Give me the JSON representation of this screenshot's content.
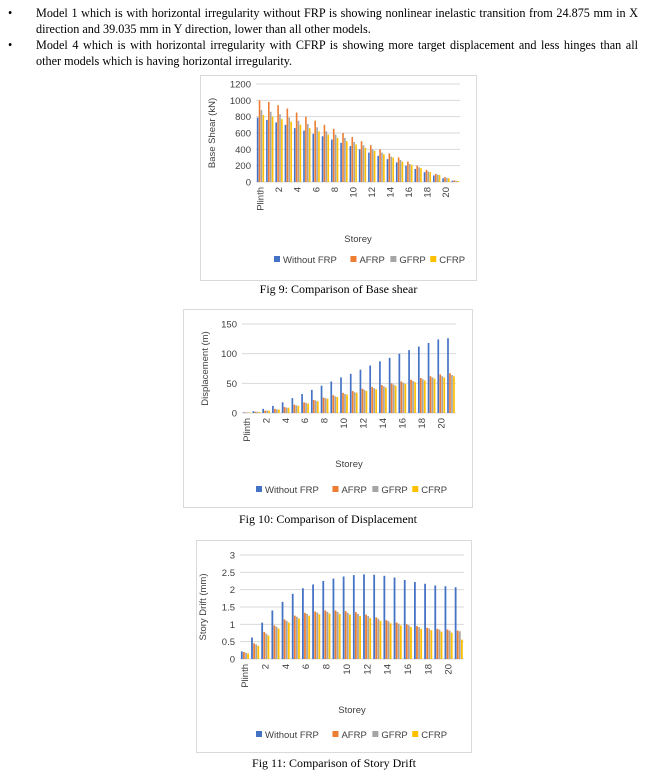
{
  "bullets": [
    "Model 1 which is with horizontal irregularity without FRP is showing nonlinear inelastic transition from 24.875 mm in X direction and 39.035 mm in Y direction, lower than all other models.",
    "Model 4 which is with horizontal irregularity with CFRP is showing more target displacement and less hinges than all other models which is having horizontal irregularity."
  ],
  "captions": {
    "fig9": "Fig 9: Comparison of Base shear",
    "fig10": "Fig 10: Comparison of Displacement",
    "fig11": "Fig 11: Comparison of Story Drift"
  },
  "chart_data": [
    {
      "type": "bar",
      "xlabel": "Storey",
      "ylabel": "Base Shear (kN)",
      "ylim": [
        0,
        1200
      ],
      "yticks": [
        0,
        200,
        400,
        600,
        800,
        1000,
        1200
      ],
      "grid": true,
      "legend": "bottom",
      "categories": [
        "Plinth",
        "1",
        "2",
        "3",
        "4",
        "5",
        "6",
        "7",
        "8",
        "9",
        "10",
        "11",
        "12",
        "13",
        "14",
        "15",
        "16",
        "17",
        "18",
        "19",
        "20",
        "21"
      ],
      "tick_labels": [
        "Plinth",
        "2",
        "4",
        "6",
        "8",
        "10",
        "12",
        "14",
        "16",
        "18",
        "20"
      ],
      "series": [
        {
          "name": "Without FRP",
          "color": "#4472c4",
          "values": [
            790,
            760,
            730,
            700,
            660,
            630,
            590,
            560,
            520,
            480,
            440,
            400,
            360,
            320,
            280,
            240,
            200,
            160,
            120,
            80,
            45,
            15
          ]
        },
        {
          "name": "AFRP",
          "color": "#ed7d31",
          "values": [
            1000,
            980,
            940,
            900,
            850,
            800,
            750,
            700,
            650,
            600,
            550,
            500,
            450,
            400,
            350,
            300,
            250,
            200,
            150,
            100,
            60,
            20
          ]
        },
        {
          "name": "GFRP",
          "color": "#a5a5a5",
          "values": [
            880,
            860,
            830,
            790,
            750,
            710,
            670,
            620,
            580,
            540,
            490,
            450,
            400,
            360,
            310,
            270,
            220,
            180,
            130,
            90,
            50,
            15
          ]
        },
        {
          "name": "CFRP",
          "color": "#ffc000",
          "values": [
            820,
            800,
            770,
            740,
            700,
            660,
            620,
            580,
            540,
            500,
            460,
            420,
            380,
            340,
            300,
            250,
            210,
            170,
            120,
            85,
            45,
            12
          ]
        }
      ]
    },
    {
      "type": "bar",
      "xlabel": "Storey",
      "ylabel": "Displacement (m)",
      "ylim": [
        0,
        150
      ],
      "yticks": [
        0,
        50,
        100,
        150
      ],
      "grid": true,
      "legend": "bottom",
      "categories": [
        "Plinth",
        "1",
        "2",
        "3",
        "4",
        "5",
        "6",
        "7",
        "8",
        "9",
        "10",
        "11",
        "12",
        "13",
        "14",
        "15",
        "16",
        "17",
        "18",
        "19",
        "20",
        "21"
      ],
      "tick_labels": [
        "Plinth",
        "2",
        "4",
        "6",
        "8",
        "10",
        "12",
        "14",
        "16",
        "18",
        "20"
      ],
      "series": [
        {
          "name": "Without FRP",
          "color": "#4472c4",
          "values": [
            1,
            3,
            7,
            12,
            18,
            25,
            32,
            39,
            46,
            53,
            60,
            66,
            73,
            80,
            87,
            93,
            100,
            106,
            112,
            118,
            124,
            126
          ]
        },
        {
          "name": "AFRP",
          "color": "#ed7d31",
          "values": [
            1,
            2,
            4,
            7,
            10,
            14,
            18,
            22,
            26,
            30,
            34,
            37,
            41,
            44,
            47,
            50,
            53,
            56,
            59,
            62,
            65,
            67
          ]
        },
        {
          "name": "GFRP",
          "color": "#a5a5a5",
          "values": [
            1,
            2,
            4,
            6,
            9,
            13,
            17,
            21,
            25,
            28,
            32,
            35,
            39,
            42,
            45,
            48,
            51,
            54,
            57,
            60,
            62,
            64
          ]
        },
        {
          "name": "CFRP",
          "color": "#ffc000",
          "values": [
            1,
            2,
            4,
            6,
            9,
            12,
            16,
            20,
            24,
            27,
            31,
            34,
            37,
            40,
            43,
            46,
            49,
            52,
            55,
            58,
            60,
            62
          ]
        }
      ]
    },
    {
      "type": "bar",
      "xlabel": "Storey",
      "ylabel": "Story Drift (mm)",
      "ylim": [
        0,
        3
      ],
      "yticks": [
        0,
        0.5,
        1,
        1.5,
        2,
        2.5,
        3
      ],
      "grid": true,
      "legend": "bottom",
      "categories": [
        "Plinth",
        "1",
        "2",
        "3",
        "4",
        "5",
        "6",
        "7",
        "8",
        "9",
        "10",
        "11",
        "12",
        "13",
        "14",
        "15",
        "16",
        "17",
        "18",
        "19",
        "20",
        "21"
      ],
      "tick_labels": [
        "Plinth",
        "2",
        "4",
        "6",
        "8",
        "10",
        "12",
        "14",
        "16",
        "18",
        "20"
      ],
      "series": [
        {
          "name": "Without FRP",
          "color": "#4472c4",
          "values": [
            0.22,
            0.62,
            1.05,
            1.4,
            1.65,
            1.88,
            2.04,
            2.15,
            2.25,
            2.32,
            2.38,
            2.42,
            2.44,
            2.43,
            2.4,
            2.35,
            2.28,
            2.22,
            2.17,
            2.12,
            2.1,
            2.07
          ]
        },
        {
          "name": "AFRP",
          "color": "#ed7d31",
          "values": [
            0.2,
            0.45,
            0.78,
            0.97,
            1.14,
            1.25,
            1.33,
            1.37,
            1.4,
            1.4,
            1.38,
            1.35,
            1.28,
            1.2,
            1.12,
            1.05,
            1.0,
            0.95,
            0.9,
            0.87,
            0.85,
            0.82
          ]
        },
        {
          "name": "GFRP",
          "color": "#a5a5a5",
          "values": [
            0.18,
            0.42,
            0.73,
            0.93,
            1.1,
            1.22,
            1.3,
            1.34,
            1.36,
            1.36,
            1.33,
            1.3,
            1.24,
            1.16,
            1.09,
            1.02,
            0.97,
            0.92,
            0.88,
            0.85,
            0.82,
            0.8
          ]
        },
        {
          "name": "CFRP",
          "color": "#ffc000",
          "values": [
            0.16,
            0.38,
            0.68,
            0.88,
            1.05,
            1.17,
            1.25,
            1.29,
            1.31,
            1.3,
            1.28,
            1.24,
            1.18,
            1.1,
            1.03,
            0.97,
            0.92,
            0.87,
            0.83,
            0.79,
            0.76,
            0.56
          ]
        }
      ]
    }
  ]
}
